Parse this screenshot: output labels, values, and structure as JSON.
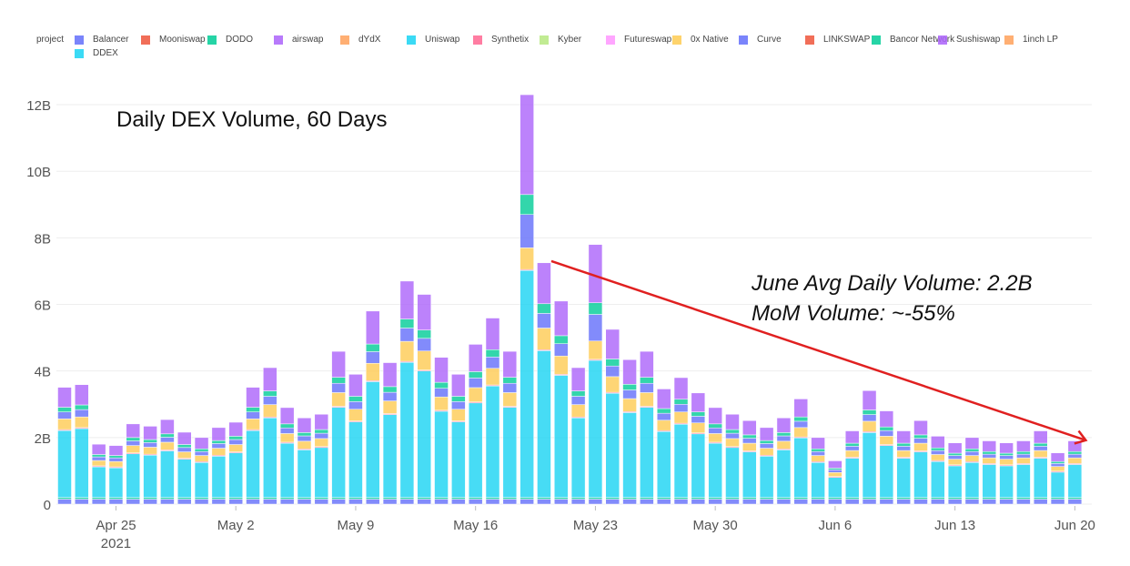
{
  "legend_title": "project",
  "chart_data": {
    "type": "bar",
    "stacked": true,
    "title": "Daily DEX Volume, 60 Days",
    "xlabel": "",
    "ylabel": "",
    "ylim": [
      0,
      12.5
    ],
    "yunit": "B",
    "y_ticks": [
      "0",
      "2B",
      "4B",
      "6B",
      "8B",
      "10B",
      "12B"
    ],
    "y_tick_values": [
      0,
      2,
      4,
      6,
      8,
      10,
      12
    ],
    "x_ticks": [
      {
        "day": 3,
        "label": "Apr 25",
        "sub": "2021"
      },
      {
        "day": 10,
        "label": "May 2"
      },
      {
        "day": 17,
        "label": "May 9"
      },
      {
        "day": 24,
        "label": "May 16"
      },
      {
        "day": 31,
        "label": "May 23"
      },
      {
        "day": 38,
        "label": "May 30"
      },
      {
        "day": 45,
        "label": "Jun 6"
      },
      {
        "day": 52,
        "label": "Jun 13"
      },
      {
        "day": 59,
        "label": "Jun 20"
      }
    ],
    "x_start": "2021-04-22",
    "x_end": "2021-06-20",
    "legend_entries": [
      {
        "name": "Balancer",
        "color": "#636efa"
      },
      {
        "name": "Mooniswap",
        "color": "#ef553b"
      },
      {
        "name": "DODO",
        "color": "#00cc96"
      },
      {
        "name": "airswap",
        "color": "#ab63fa"
      },
      {
        "name": "dYdX",
        "color": "#ffa15a"
      },
      {
        "name": "Uniswap",
        "color": "#19d3f3"
      },
      {
        "name": "Synthetix",
        "color": "#ff6692"
      },
      {
        "name": "Kyber",
        "color": "#b6e880"
      },
      {
        "name": "Futureswap",
        "color": "#ff97ff"
      },
      {
        "name": "0x Native",
        "color": "#fecb52"
      },
      {
        "name": "Curve",
        "color": "#636efa"
      },
      {
        "name": "LINKSWAP",
        "color": "#ef553b"
      },
      {
        "name": "Bancor Network",
        "color": "#00cc96"
      },
      {
        "name": "Sushiswap",
        "color": "#ab63fa"
      },
      {
        "name": "1inch LP",
        "color": "#ffa15a"
      },
      {
        "name": "DDEX",
        "color": "#19d3f3"
      }
    ],
    "series": [
      {
        "name": "Balancer",
        "color": "#636efa",
        "values": [
          0.15,
          0.15,
          0.15,
          0.15,
          0.15,
          0.15,
          0.15,
          0.15,
          0.15,
          0.15,
          0.15,
          0.15,
          0.15,
          0.15,
          0.15,
          0.15,
          0.15,
          0.15,
          0.15,
          0.15,
          0.15,
          0.15,
          0.15,
          0.15,
          0.15,
          0.15,
          0.15,
          0.15,
          0.15,
          0.15,
          0.15,
          0.15,
          0.15,
          0.15,
          0.15,
          0.15,
          0.15,
          0.15,
          0.15,
          0.15,
          0.15,
          0.15,
          0.15,
          0.15,
          0.15,
          0.15,
          0.15,
          0.15,
          0.15,
          0.15,
          0.15,
          0.15,
          0.15,
          0.15,
          0.15,
          0.15,
          0.15,
          0.15,
          0.15,
          0.15
        ]
      },
      {
        "name": "DODO",
        "color": "#00cc96",
        "values": [
          0.05,
          0.05,
          0.05,
          0.05,
          0.05,
          0.05,
          0.05,
          0.05,
          0.05,
          0.05,
          0.05,
          0.05,
          0.05,
          0.05,
          0.05,
          0.05,
          0.05,
          0.05,
          0.05,
          0.05,
          0.05,
          0.05,
          0.05,
          0.05,
          0.05,
          0.05,
          0.05,
          0.05,
          0.05,
          0.05,
          0.05,
          0.05,
          0.05,
          0.05,
          0.05,
          0.05,
          0.05,
          0.05,
          0.05,
          0.05,
          0.05,
          0.05,
          0.05,
          0.05,
          0.05,
          0.05,
          0.05,
          0.05,
          0.05,
          0.05,
          0.05,
          0.05,
          0.05,
          0.05,
          0.05,
          0.05,
          0.05,
          0.05,
          0.05,
          0.05
        ]
      },
      {
        "name": "Uniswap",
        "color": "#19d3f3",
        "values": [
          2.01,
          2.07,
          0.92,
          0.89,
          1.31,
          1.27,
          1.4,
          1.15,
          1.05,
          1.24,
          1.34,
          2.01,
          2.39,
          1.63,
          1.43,
          1.5,
          2.71,
          2.27,
          3.48,
          2.49,
          4.06,
          3.8,
          2.59,
          2.27,
          2.84,
          3.35,
          2.71,
          6.82,
          4.41,
          3.67,
          2.39,
          4.12,
          3.13,
          2.55,
          2.71,
          1.98,
          2.2,
          1.91,
          1.63,
          1.5,
          1.37,
          1.24,
          1.43,
          1.79,
          1.05,
          0.6,
          1.18,
          1.95,
          1.56,
          1.18,
          1.37,
          1.08,
          0.95,
          1.05,
          0.99,
          0.95,
          0.99,
          1.18,
          0.76,
          0.99
        ]
      },
      {
        "name": "Synthetix",
        "color": "#ff6692",
        "values": [
          0.03,
          0.03,
          0.03,
          0.03,
          0.03,
          0.03,
          0.03,
          0.03,
          0.03,
          0.03,
          0.03,
          0.03,
          0.03,
          0.03,
          0.03,
          0.03,
          0.03,
          0.03,
          0.03,
          0.03,
          0.03,
          0.03,
          0.03,
          0.03,
          0.03,
          0.03,
          0.03,
          0.03,
          0.03,
          0.03,
          0.03,
          0.03,
          0.03,
          0.03,
          0.03,
          0.03,
          0.03,
          0.03,
          0.03,
          0.03,
          0.03,
          0.03,
          0.03,
          0.03,
          0.03,
          0.03,
          0.03,
          0.03,
          0.03,
          0.03,
          0.03,
          0.03,
          0.03,
          0.03,
          0.03,
          0.03,
          0.03,
          0.03,
          0.03,
          0.03
        ]
      },
      {
        "name": "0x Native",
        "color": "#fecb52",
        "values": [
          0.32,
          0.32,
          0.16,
          0.16,
          0.22,
          0.21,
          0.23,
          0.19,
          0.18,
          0.21,
          0.22,
          0.32,
          0.37,
          0.26,
          0.23,
          0.24,
          0.41,
          0.35,
          0.52,
          0.38,
          0.6,
          0.57,
          0.4,
          0.35,
          0.43,
          0.5,
          0.41,
          0.65,
          0.65,
          0.55,
          0.37,
          0.55,
          0.47,
          0.39,
          0.41,
          0.31,
          0.34,
          0.3,
          0.26,
          0.24,
          0.23,
          0.21,
          0.23,
          0.28,
          0.18,
          0.12,
          0.2,
          0.31,
          0.25,
          0.2,
          0.23,
          0.18,
          0.17,
          0.18,
          0.17,
          0.17,
          0.17,
          0.2,
          0.14,
          0.17
        ]
      },
      {
        "name": "Curve",
        "color": "#636efa",
        "values": [
          0.21,
          0.22,
          0.11,
          0.11,
          0.14,
          0.14,
          0.15,
          0.13,
          0.12,
          0.14,
          0.15,
          0.21,
          0.25,
          0.17,
          0.16,
          0.16,
          0.28,
          0.23,
          0.35,
          0.26,
          0.4,
          0.38,
          0.26,
          0.23,
          0.29,
          0.34,
          0.28,
          1.0,
          0.44,
          0.37,
          0.25,
          0.8,
          0.32,
          0.26,
          0.28,
          0.21,
          0.23,
          0.2,
          0.17,
          0.16,
          0.15,
          0.14,
          0.16,
          0.19,
          0.12,
          0.08,
          0.13,
          0.2,
          0.17,
          0.13,
          0.15,
          0.12,
          0.11,
          0.12,
          0.11,
          0.11,
          0.11,
          0.13,
          0.09,
          0.11
        ]
      },
      {
        "name": "Bancor Network",
        "color": "#00cc96",
        "values": [
          0.14,
          0.14,
          0.07,
          0.07,
          0.1,
          0.09,
          0.1,
          0.09,
          0.08,
          0.09,
          0.1,
          0.14,
          0.16,
          0.12,
          0.1,
          0.11,
          0.18,
          0.16,
          0.23,
          0.17,
          0.27,
          0.25,
          0.18,
          0.16,
          0.19,
          0.22,
          0.18,
          0.6,
          0.29,
          0.24,
          0.16,
          0.35,
          0.21,
          0.17,
          0.18,
          0.14,
          0.15,
          0.13,
          0.12,
          0.11,
          0.1,
          0.09,
          0.1,
          0.13,
          0.08,
          0.05,
          0.09,
          0.14,
          0.11,
          0.09,
          0.1,
          0.08,
          0.07,
          0.08,
          0.08,
          0.07,
          0.08,
          0.09,
          0.06,
          0.08
        ]
      },
      {
        "name": "Sushiswap",
        "color": "#ab63fa",
        "values": [
          0.6,
          0.61,
          0.31,
          0.3,
          0.41,
          0.4,
          0.43,
          0.37,
          0.34,
          0.39,
          0.42,
          0.6,
          0.7,
          0.49,
          0.44,
          0.46,
          0.78,
          0.66,
          0.99,
          0.72,
          1.14,
          1.07,
          0.75,
          0.66,
          0.82,
          0.95,
          0.78,
          3.0,
          1.23,
          1.04,
          0.7,
          1.75,
          0.89,
          0.74,
          0.78,
          0.59,
          0.65,
          0.57,
          0.49,
          0.46,
          0.43,
          0.39,
          0.44,
          0.54,
          0.34,
          0.22,
          0.37,
          0.58,
          0.48,
          0.37,
          0.43,
          0.35,
          0.31,
          0.34,
          0.32,
          0.31,
          0.32,
          0.37,
          0.26,
          0.32
        ]
      }
    ],
    "annotations": {
      "title": "Daily DEX Volume, 60 Days",
      "line1": "June Avg Daily Volume: 2.2B",
      "line2": "MoM Volume: ~-55%"
    },
    "trend_arrow": {
      "from_day": 28,
      "from_value": 7.3,
      "to_day": 59,
      "to_value": 2.0,
      "color": "#e02020"
    }
  }
}
